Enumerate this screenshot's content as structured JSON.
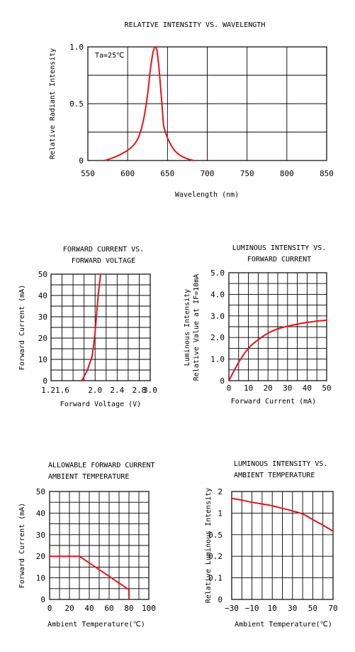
{
  "chart_data": [
    {
      "id": "c1",
      "type": "line",
      "title": "RELATIVE INTENSITY VS. WAVELENGTH",
      "xlabel": "Wavelength (nm)",
      "ylabel": "Relative Radiant Intensity",
      "annotation": "Ta=25℃",
      "xlim": [
        550,
        850
      ],
      "ylim": [
        0,
        1.0
      ],
      "x_ticks": [
        550,
        600,
        650,
        700,
        750,
        800,
        850
      ],
      "x_tick_labels": [
        "550",
        "600",
        "650",
        "700",
        "750",
        "800",
        "850"
      ],
      "y_ticks": [
        0,
        0.5,
        1.0
      ],
      "y_tick_labels": [
        "0",
        "0.5",
        "1.0"
      ],
      "grid_x": [
        600,
        650,
        700,
        750,
        800
      ],
      "grid_y": [
        0.25,
        0.5,
        0.75
      ],
      "series": [
        {
          "x": [
            571,
            580,
            590,
            600,
            608,
            614,
            620,
            625,
            628,
            631,
            633,
            635,
            637,
            640,
            643,
            645,
            647,
            650,
            655,
            660,
            665,
            670,
            675,
            680,
            683
          ],
          "y": [
            0.0,
            0.02,
            0.05,
            0.09,
            0.14,
            0.21,
            0.36,
            0.58,
            0.77,
            0.92,
            0.98,
            1.0,
            0.96,
            0.76,
            0.5,
            0.32,
            0.26,
            0.2,
            0.13,
            0.08,
            0.05,
            0.03,
            0.015,
            0.005,
            0.0
          ]
        }
      ]
    },
    {
      "id": "c2",
      "type": "line",
      "title": [
        "FORWARD CURRENT VS.",
        "FORWARD VOLTAGE"
      ],
      "xlabel": "Forward Voltage (V)",
      "ylabel": "Forward Current (mA)",
      "xlim": [
        1.2,
        3.0
      ],
      "ylim": [
        0,
        50
      ],
      "x_ticks": [
        1.2,
        1.4,
        1.6,
        1.8,
        2.0,
        2.2,
        2.4,
        2.6,
        2.8,
        3.0
      ],
      "x_tick_labels": [
        "1.2",
        "1.4",
        "1.6",
        "1.8",
        "2.0",
        "2.2",
        "2.4",
        "2.6",
        "2.8",
        "3.0"
      ],
      "x_tick_labels_shown": [
        1.2,
        1.6,
        2.0,
        2.4,
        2.8,
        3.0
      ],
      "x_tick_labels_joined": [
        "1.21.6"
      ],
      "y_ticks": [
        0,
        10,
        20,
        30,
        40,
        50
      ],
      "y_tick_labels": [
        "0",
        "10",
        "20",
        "30",
        "40",
        "50"
      ],
      "grid_x": [
        1.4,
        1.6,
        1.8,
        2.0,
        2.2,
        2.4,
        2.6,
        2.8
      ],
      "grid_y": [
        5,
        10,
        15,
        20,
        25,
        30,
        35,
        40,
        45
      ],
      "series": [
        {
          "x": [
            1.75,
            1.78,
            1.82,
            1.86,
            1.9,
            1.94,
            1.97,
            2.0,
            2.03,
            2.06,
            2.1
          ],
          "y": [
            0,
            1,
            3,
            5,
            8,
            11,
            16,
            23,
            32,
            41,
            50
          ]
        }
      ]
    },
    {
      "id": "c3",
      "type": "line",
      "title": [
        "LUMINOUS INTENSITY VS.",
        "FORWARD CURRENT"
      ],
      "xlabel": "Forward Current (mA)",
      "ylabel": [
        "Luminous Intensity",
        "Relative Value at IF=10mA"
      ],
      "xlim": [
        0,
        50
      ],
      "ylim": [
        0,
        5.0
      ],
      "x_ticks": [
        0,
        10,
        20,
        30,
        40,
        50
      ],
      "x_tick_labels": [
        "0",
        "10",
        "20",
        "30",
        "40",
        "50"
      ],
      "y_ticks": [
        0,
        1.0,
        2.0,
        3.0,
        4.0,
        5.0
      ],
      "y_tick_labels": [
        "0",
        "1.0",
        "2.0",
        "3.0",
        "4.0",
        "5.0"
      ],
      "grid_x": [
        5,
        10,
        15,
        20,
        25,
        30,
        35,
        40,
        45
      ],
      "grid_y": [
        0.5,
        1.0,
        1.5,
        2.0,
        2.5,
        3.0,
        3.5,
        4.0,
        4.5
      ],
      "series": [
        {
          "x": [
            0,
            5,
            10,
            15,
            20,
            25,
            30,
            35,
            40,
            45,
            50
          ],
          "y": [
            0,
            0.85,
            1.5,
            1.9,
            2.2,
            2.4,
            2.52,
            2.62,
            2.7,
            2.76,
            2.8
          ]
        }
      ]
    },
    {
      "id": "c4",
      "type": "line",
      "title": [
        "ALLOWABLE FORWARD CURRENT",
        "AMBIENT TEMPERATURE"
      ],
      "xlabel": "Ambient Temperature(℃)",
      "ylabel": "Forward Current (mA)",
      "xlim": [
        0,
        100
      ],
      "ylim": [
        0,
        50
      ],
      "x_ticks": [
        0,
        20,
        40,
        60,
        80,
        100
      ],
      "x_tick_labels": [
        "0",
        "20",
        "40",
        "60",
        "80",
        "100"
      ],
      "y_ticks": [
        0,
        10,
        20,
        30,
        40,
        50
      ],
      "y_tick_labels": [
        "0",
        "10",
        "20",
        "30",
        "40",
        "50"
      ],
      "grid_x": [
        10,
        20,
        30,
        40,
        50,
        60,
        70,
        80,
        90
      ],
      "grid_y": [
        5,
        10,
        15,
        20,
        25,
        30,
        35,
        40,
        45
      ],
      "series": [
        {
          "x": [
            0,
            30,
            80,
            80
          ],
          "y": [
            20,
            20,
            4.5,
            0
          ]
        }
      ]
    },
    {
      "id": "c5",
      "type": "line",
      "title": [
        "LUMINOUS INTENSITY VS.",
        "AMBIENT TEMPERATURE"
      ],
      "xlabel": "Ambient Temperature(℃)",
      "ylabel": "Relative Luminous Intensity",
      "xlim": [
        -30,
        70
      ],
      "ylim": [
        0,
        2
      ],
      "x_ticks": [
        -30,
        -10,
        10,
        30,
        50,
        70
      ],
      "x_tick_labels": [
        "−30",
        "−10",
        "10",
        "30",
        "50",
        "70"
      ],
      "y_ticks": [
        0,
        0.1,
        0.2,
        0.5,
        1,
        2
      ],
      "y_tick_labels": [
        "0",
        "0.1",
        "0.2",
        "0.5",
        "1",
        "2"
      ],
      "grid_x": [
        -20,
        -10,
        0,
        10,
        20,
        30,
        40,
        50,
        60
      ],
      "grid_y": [
        0.1,
        0.2,
        0.5,
        1,
        2
      ],
      "series": [
        {
          "x": [
            -30,
            -20,
            -10,
            0,
            10,
            20,
            30,
            40,
            50,
            60,
            70
          ],
          "y": [
            1.68,
            1.6,
            1.5,
            1.42,
            1.34,
            1.22,
            1.1,
            0.98,
            0.85,
            0.72,
            0.58
          ]
        }
      ]
    }
  ]
}
